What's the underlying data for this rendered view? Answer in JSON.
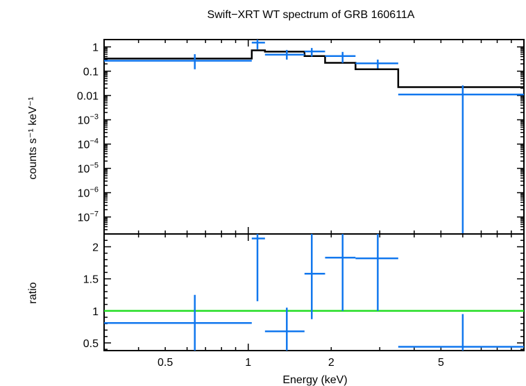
{
  "chart_data": [
    {
      "type": "scatter",
      "title": "Swift−XRT WT spectrum of GRB 160611A",
      "ylabel": "counts s⁻¹ keV⁻¹",
      "xscale": "log",
      "yscale": "log",
      "xlim": [
        0.3,
        10
      ],
      "ylim": [
        2e-08,
        2
      ],
      "yticks": [
        {
          "value": 1,
          "label": "1"
        },
        {
          "value": 0.1,
          "label": "0.1"
        },
        {
          "value": 0.01,
          "label": "0.01"
        },
        {
          "value": 0.001,
          "label": "10",
          "exp": "−3"
        },
        {
          "value": 0.0001,
          "label": "10",
          "exp": "−4"
        },
        {
          "value": 1e-05,
          "label": "10",
          "exp": "−5"
        },
        {
          "value": 1e-06,
          "label": "10",
          "exp": "−6"
        },
        {
          "value": 1e-07,
          "label": "10",
          "exp": "−7"
        }
      ],
      "data_points": [
        {
          "x": 0.64,
          "xlo": 0.3,
          "xhi": 1.03,
          "y": 0.27,
          "ylo": 0.12,
          "yhi": 0.5
        },
        {
          "x": 1.08,
          "xlo": 1.03,
          "xhi": 1.15,
          "y": 1.5,
          "ylo": 0.8,
          "yhi": 2.0
        },
        {
          "x": 1.38,
          "xlo": 1.15,
          "xhi": 1.6,
          "y": 0.48,
          "ylo": 0.3,
          "yhi": 0.75
        },
        {
          "x": 1.7,
          "xlo": 1.6,
          "xhi": 1.9,
          "y": 0.65,
          "ylo": 0.4,
          "yhi": 0.9
        },
        {
          "x": 2.2,
          "xlo": 1.9,
          "xhi": 2.45,
          "y": 0.42,
          "ylo": 0.22,
          "yhi": 0.62
        },
        {
          "x": 2.95,
          "xlo": 2.45,
          "xhi": 3.5,
          "y": 0.21,
          "ylo": 0.13,
          "yhi": 0.3
        },
        {
          "x": 6.0,
          "xlo": 3.5,
          "xhi": 10,
          "y": 0.011,
          "ylo": 2e-08,
          "yhi": 0.026
        }
      ],
      "model_steps": [
        {
          "x0": 0.3,
          "x1": 1.03,
          "y": 0.33
        },
        {
          "x0": 1.03,
          "x1": 1.15,
          "y": 0.72
        },
        {
          "x0": 1.15,
          "x1": 1.6,
          "y": 0.64
        },
        {
          "x0": 1.6,
          "x1": 1.9,
          "y": 0.42
        },
        {
          "x0": 1.9,
          "x1": 2.45,
          "y": 0.22
        },
        {
          "x0": 2.45,
          "x1": 3.5,
          "y": 0.12
        },
        {
          "x0": 3.5,
          "x1": 10,
          "y": 0.022
        }
      ],
      "colors": {
        "data": "#1177ee",
        "model": "#000000"
      }
    },
    {
      "type": "scatter",
      "ylabel": "ratio",
      "xlabel": "Energy (keV)",
      "xscale": "log",
      "xlim": [
        0.3,
        10
      ],
      "ylim": [
        0.38,
        2.2
      ],
      "yticks": [
        {
          "value": 0.5,
          "label": "0.5"
        },
        {
          "value": 1,
          "label": "1"
        },
        {
          "value": 1.5,
          "label": "1.5"
        },
        {
          "value": 2,
          "label": "2"
        }
      ],
      "xticks": [
        {
          "value": 0.5,
          "label": "0.5"
        },
        {
          "value": 1,
          "label": "1"
        },
        {
          "value": 2,
          "label": "2"
        },
        {
          "value": 5,
          "label": "5"
        }
      ],
      "data_points": [
        {
          "x": 0.64,
          "xlo": 0.3,
          "xhi": 1.03,
          "y": 0.81,
          "ylo": 0.38,
          "yhi": 1.25
        },
        {
          "x": 1.08,
          "xlo": 1.03,
          "xhi": 1.15,
          "y": 2.13,
          "ylo": 1.15,
          "yhi": 2.2
        },
        {
          "x": 1.38,
          "xlo": 1.15,
          "xhi": 1.6,
          "y": 0.68,
          "ylo": 0.38,
          "yhi": 1.05
        },
        {
          "x": 1.7,
          "xlo": 1.6,
          "xhi": 1.9,
          "y": 1.58,
          "ylo": 0.87,
          "yhi": 2.2
        },
        {
          "x": 2.2,
          "xlo": 1.9,
          "xhi": 2.45,
          "y": 1.83,
          "ylo": 1.0,
          "yhi": 2.2
        },
        {
          "x": 2.95,
          "xlo": 2.45,
          "xhi": 3.5,
          "y": 1.82,
          "ylo": 1.0,
          "yhi": 2.2
        },
        {
          "x": 6.0,
          "xlo": 3.5,
          "xhi": 10,
          "y": 0.44,
          "ylo": 0.38,
          "yhi": 0.95
        }
      ],
      "reference_line": 1,
      "colors": {
        "data": "#1177ee",
        "reference": "#22dd22"
      }
    }
  ]
}
